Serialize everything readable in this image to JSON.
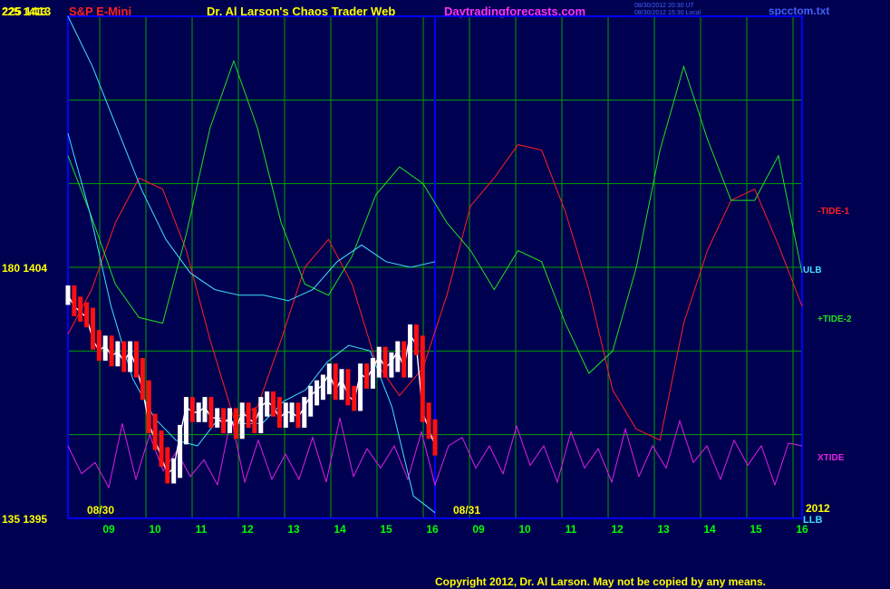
{
  "header": {
    "left_label": "225  1413",
    "instrument": "S&P E-Mini",
    "title": "Dr. Al Larson's Chaos Trader Web",
    "site": "Daytradingforecasts.com",
    "timestamp_line1": "08/30/2012 20:30 UT",
    "timestamp_line2": "08/30/2012 15:30 Local",
    "file": "spcctom.txt"
  },
  "footer": {
    "copyright": "Copyright 2012, Dr. Al Larson. May not be copied by any means."
  },
  "colors": {
    "background": "#000050",
    "grid": "#00a000",
    "border": "#0000ff",
    "tide1": "#ff2020",
    "tide2": "#20e020",
    "xtide": "#e020e0",
    "ulb": "#40e0ff",
    "price": "#ffffff"
  },
  "chart_data": {
    "type": "line",
    "left_axis_labels": [
      {
        "text": "225  1413",
        "value": 1413
      },
      {
        "text": "180  1404",
        "value": 1404
      },
      {
        "text": "135  1395",
        "value": 1395
      }
    ],
    "ylim": [
      1395,
      1413
    ],
    "date_labels": [
      "08/30",
      "08/31",
      "2012"
    ],
    "hour_ticks": [
      "09",
      "10",
      "11",
      "12",
      "13",
      "14",
      "15",
      "16",
      "09",
      "10",
      "11",
      "12",
      "13",
      "14",
      "15",
      "16"
    ],
    "series": [
      {
        "name": "-TIDE-1",
        "color": "#ff2020",
        "values": [
          1401.6,
          1403.2,
          1405.6,
          1407.2,
          1406.8,
          1404.6,
          1401.4,
          1398.6,
          1399.0,
          1401.4,
          1404.0,
          1405.0,
          1403.4,
          1400.6,
          1399.4,
          1400.4,
          1403.0,
          1406.2,
          1407.2,
          1408.4,
          1408.2,
          1406.0,
          1403.2,
          1399.6,
          1398.2,
          1397.8,
          1402.0,
          1404.6,
          1406.4,
          1406.8,
          1404.8,
          1402.6
        ]
      },
      {
        "name": "+TIDE-2",
        "color": "#20e020",
        "values": [
          1408.0,
          1405.8,
          1403.4,
          1402.2,
          1402.0,
          1405.2,
          1409.0,
          1411.4,
          1409.0,
          1405.6,
          1403.4,
          1403.0,
          1404.4,
          1406.6,
          1407.6,
          1407.0,
          1405.6,
          1404.6,
          1403.2,
          1404.6,
          1404.2,
          1402.0,
          1400.2,
          1401.0,
          1404.0,
          1408.2,
          1411.2,
          1408.6,
          1406.4,
          1406.4,
          1408.0,
          1403.8
        ]
      },
      {
        "name": "XTIDE",
        "color": "#e020e0",
        "values": [
          1397.6,
          1396.6,
          1397.0,
          1396.1,
          1398.4,
          1396.4,
          1398.0,
          1396.7,
          1397.4,
          1396.5,
          1397.1,
          1396.2,
          1398.6,
          1396.3,
          1397.8,
          1396.4,
          1397.3,
          1396.4,
          1397.9,
          1396.3,
          1398.6,
          1396.5,
          1397.5,
          1396.8,
          1397.6,
          1396.4,
          1398.1,
          1396.2,
          1397.6,
          1397.9,
          1396.8,
          1397.6,
          1396.6,
          1398.3,
          1396.9,
          1397.6,
          1396.3,
          1398.1,
          1396.8,
          1397.5,
          1396.3,
          1398.2,
          1396.5,
          1397.6,
          1396.8,
          1398.5,
          1397.0,
          1397.6,
          1396.4,
          1397.8,
          1396.9,
          1397.6,
          1396.2,
          1397.7,
          1397.6
        ]
      },
      {
        "name": "ULB",
        "color": "#40e0ff",
        "values": [
          1413.0,
          1411.2,
          1409.0,
          1406.8,
          1405.0,
          1403.8,
          1403.2,
          1403.0,
          1403.0,
          1402.8,
          1403.2,
          1404.2,
          1404.8,
          1404.2,
          1404.0,
          1404.2
        ]
      },
      {
        "name": "LLB",
        "color": "#40e0ff",
        "values": [
          1408.8,
          1406.0,
          1402.6,
          1400.0,
          1398.6,
          1397.8,
          1397.6,
          1398.6,
          1398.4,
          1398.4,
          1399.2,
          1399.6,
          1400.6,
          1401.2,
          1401.0,
          1399.0,
          1395.8,
          1395.2
        ]
      },
      {
        "name": "Price",
        "color": "#ffffff",
        "values": [
          1403.0,
          1402.6,
          1402.4,
          1402.2,
          1401.4,
          1401.0,
          1401.2,
          1400.8,
          1401.0,
          1400.6,
          1401.0,
          1400.4,
          1399.6,
          1398.4,
          1397.8,
          1397.2,
          1396.6,
          1396.8,
          1398.0,
          1399.0,
          1398.8,
          1398.8,
          1399.0,
          1398.6,
          1398.6,
          1398.4,
          1398.6,
          1398.2,
          1398.8,
          1398.6,
          1398.4,
          1399.0,
          1399.2,
          1399.0,
          1398.6,
          1398.8,
          1398.8,
          1398.6,
          1399.0,
          1399.4,
          1399.6,
          1399.8,
          1400.2,
          1399.6,
          1400.0,
          1399.4,
          1399.2,
          1400.2,
          1400.0,
          1400.4,
          1400.8,
          1400.4,
          1400.6,
          1401.0,
          1400.4,
          1401.6,
          1401.2,
          1398.8,
          1398.2,
          1397.6
        ]
      }
    ],
    "series_labels": [
      {
        "text": "-TIDE-1",
        "color": "#ff2020"
      },
      {
        "text": "ULB",
        "color": "#40e0ff"
      },
      {
        "text": "+TIDE-2",
        "color": "#20e020"
      },
      {
        "text": "XTIDE",
        "color": "#e020e0"
      },
      {
        "text": "LLB",
        "color": "#40e0ff"
      }
    ],
    "grid": true
  }
}
